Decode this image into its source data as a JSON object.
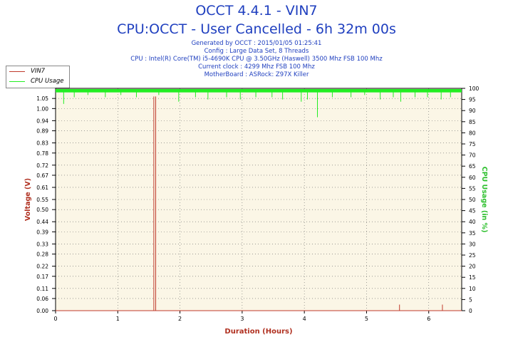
{
  "header": {
    "title": "OCCT 4.4.1 - VIN7",
    "subtitle": "CPU:OCCT - User Cancelled - 6h 32m 00s",
    "info_lines": [
      "Generated by OCCT : 2015/01/05 01:25:41",
      "Config : Large Data Set, 8 Threads",
      "CPU : Intel(R) Core(TM) i5-4690K CPU @ 3.50GHz (Haswell) 3500 Mhz FSB 100 Mhz",
      "Current clock : 4299 Mhz FSB 100 Mhz",
      "MotherBoard : ASRock: Z97X Killer"
    ]
  },
  "colors": {
    "voltage": "#c0392b",
    "cpu": "#22ee22",
    "title": "#1f3fbf",
    "plot_bg": "#fbf6e6",
    "axis_label_voltage": "#b03020",
    "axis_label_cpu": "#2fc02f",
    "xlabel": "#b03020"
  },
  "chart_data": {
    "type": "line",
    "xlabel": "Duration (Hours)",
    "ylabel_left": "Voltage (V)",
    "ylabel_right": "CPU Usage (in %)",
    "xlim": [
      0,
      6.53
    ],
    "ylim_left": [
      0,
      1.1
    ],
    "ylim_right": [
      0,
      100
    ],
    "xticks": [
      0,
      1,
      2,
      3,
      4,
      5,
      6
    ],
    "yticks_left": [
      "0.00",
      "0.06",
      "0.11",
      "0.17",
      "0.22",
      "0.28",
      "0.33",
      "0.39",
      "0.44",
      "0.50",
      "0.55",
      "0.61",
      "0.67",
      "0.72",
      "0.78",
      "0.83",
      "0.89",
      "0.94",
      "1.00",
      "1.05"
    ],
    "yticks_right": [
      0,
      5,
      10,
      15,
      20,
      25,
      30,
      35,
      40,
      45,
      50,
      55,
      60,
      65,
      70,
      75,
      80,
      85,
      90,
      95,
      100
    ],
    "grid": "dotted",
    "legend_position": "top-left",
    "series": [
      {
        "name": "VIN7",
        "axis": "left",
        "baseline": 0.0,
        "spikes": [
          {
            "x": 1.58,
            "y": 1.06
          },
          {
            "x": 1.61,
            "y": 1.06
          },
          {
            "x": 5.53,
            "y": 0.03
          },
          {
            "x": 6.22,
            "y": 0.03
          }
        ]
      },
      {
        "name": "CPU Usage",
        "axis": "right",
        "baseline": 98.5,
        "dips": [
          {
            "x": 0.13,
            "y": 93
          },
          {
            "x": 0.3,
            "y": 96
          },
          {
            "x": 0.52,
            "y": 97
          },
          {
            "x": 0.8,
            "y": 96
          },
          {
            "x": 1.05,
            "y": 97
          },
          {
            "x": 1.3,
            "y": 96
          },
          {
            "x": 1.66,
            "y": 97
          },
          {
            "x": 1.98,
            "y": 94
          },
          {
            "x": 2.25,
            "y": 96
          },
          {
            "x": 2.45,
            "y": 95
          },
          {
            "x": 2.75,
            "y": 96
          },
          {
            "x": 2.97,
            "y": 95
          },
          {
            "x": 3.22,
            "y": 96
          },
          {
            "x": 3.48,
            "y": 96
          },
          {
            "x": 3.65,
            "y": 95
          },
          {
            "x": 3.95,
            "y": 94
          },
          {
            "x": 4.05,
            "y": 95
          },
          {
            "x": 4.21,
            "y": 87
          },
          {
            "x": 4.45,
            "y": 96
          },
          {
            "x": 4.75,
            "y": 96
          },
          {
            "x": 4.97,
            "y": 97
          },
          {
            "x": 5.22,
            "y": 95
          },
          {
            "x": 5.43,
            "y": 96
          },
          {
            "x": 5.55,
            "y": 94
          },
          {
            "x": 5.78,
            "y": 96
          },
          {
            "x": 5.98,
            "y": 96
          },
          {
            "x": 6.2,
            "y": 95
          },
          {
            "x": 6.35,
            "y": 96
          }
        ]
      }
    ]
  }
}
